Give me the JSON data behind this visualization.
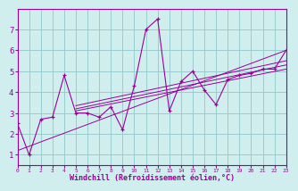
{
  "x": [
    0,
    1,
    2,
    3,
    4,
    5,
    6,
    7,
    8,
    9,
    10,
    11,
    12,
    13,
    14,
    15,
    16,
    17,
    18,
    19,
    20,
    21,
    22,
    23
  ],
  "y": [
    2.5,
    1.0,
    2.7,
    2.8,
    4.8,
    3.0,
    3.0,
    2.8,
    3.3,
    2.2,
    4.3,
    7.0,
    7.5,
    3.1,
    4.5,
    5.0,
    4.1,
    3.4,
    4.6,
    4.8,
    4.9,
    5.1,
    5.1,
    6.0
  ],
  "regression_lines": [
    {
      "x0": 0,
      "y0": 1.2,
      "x1": 23,
      "y1": 6.0
    },
    {
      "x0": 5,
      "y0": 3.1,
      "x1": 23,
      "y1": 5.1
    },
    {
      "x0": 5,
      "y0": 3.2,
      "x1": 23,
      "y1": 5.3
    },
    {
      "x0": 5,
      "y0": 3.35,
      "x1": 23,
      "y1": 5.5
    }
  ],
  "line_color": "#990099",
  "bg_color": "#d0eeee",
  "grid_color": "#99cccc",
  "xlabel": "Windchill (Refroidissement éolien,°C)",
  "xlim": [
    0,
    23
  ],
  "ylim": [
    0.5,
    8.0
  ],
  "yticks": [
    1,
    2,
    3,
    4,
    5,
    6,
    7
  ],
  "xticks": [
    0,
    1,
    2,
    3,
    4,
    5,
    6,
    7,
    8,
    9,
    10,
    11,
    12,
    13,
    14,
    15,
    16,
    17,
    18,
    19,
    20,
    21,
    22,
    23
  ]
}
